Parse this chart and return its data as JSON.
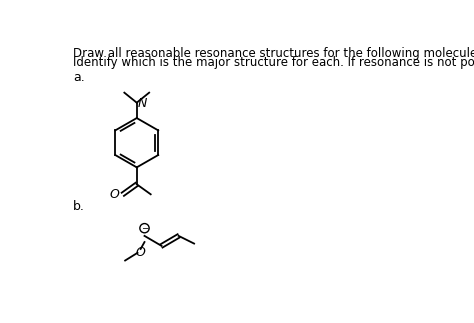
{
  "background_color": "#ffffff",
  "text_lines": [
    "Draw all reasonable resonance structures for the following molecules and explain why.",
    "Identify which is the major structure for each. If resonance is not possible, write N/A."
  ],
  "label_a": "a.",
  "label_b": "b.",
  "text_fontsize": 8.5,
  "label_fontsize": 9,
  "N_label": "N",
  "O_label_a": "O",
  "O_label_b": "O",
  "lw": 1.3
}
